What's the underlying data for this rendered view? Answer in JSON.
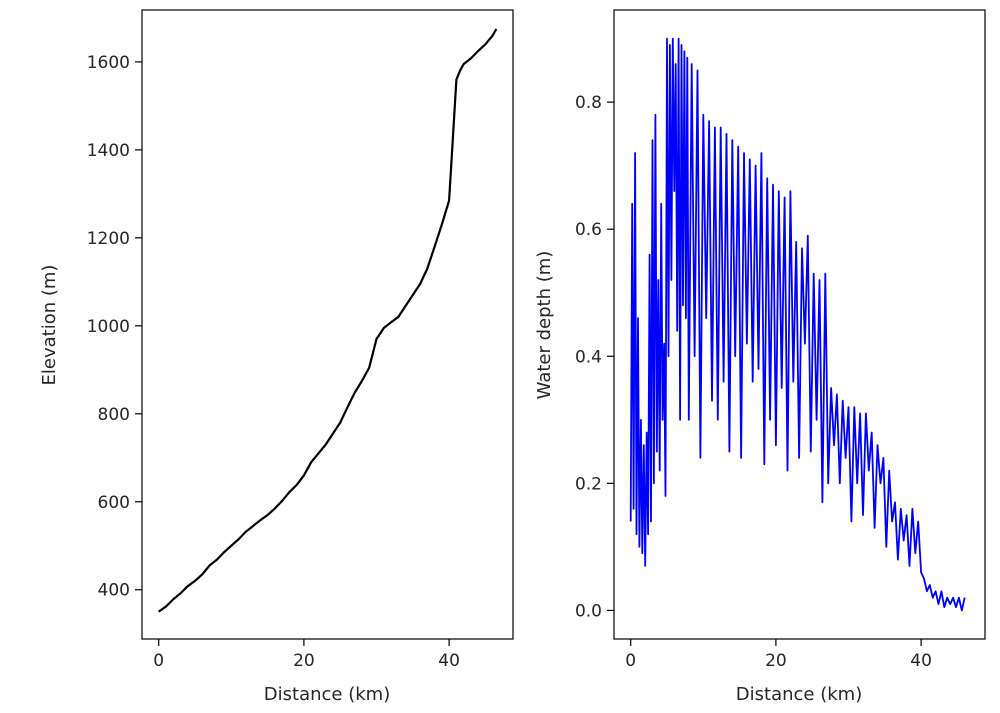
{
  "chart_data": [
    {
      "type": "line",
      "title": "",
      "xlabel": "Distance (km)",
      "ylabel": "Elevation (m)",
      "xlim": [
        -2.3,
        48.8
      ],
      "ylim": [
        288,
        1718
      ],
      "xticks": [
        0,
        20,
        40
      ],
      "yticks": [
        400,
        600,
        800,
        1000,
        1200,
        1400,
        1600
      ],
      "xtick_labels": [
        "0",
        "20",
        "40"
      ],
      "ytick_labels": [
        "400",
        "600",
        "800",
        "1000",
        "1200",
        "1400",
        "1600"
      ],
      "grid": false,
      "series": [
        {
          "name": "Elevation",
          "color": "#000000",
          "x": [
            0,
            1,
            2,
            3,
            4,
            5,
            6,
            7,
            8,
            9,
            10,
            11,
            12,
            13,
            14,
            15,
            16,
            17,
            18,
            19,
            20,
            21,
            22,
            23,
            24,
            25,
            26,
            27,
            28,
            29,
            30,
            31,
            32,
            33,
            34,
            35,
            36,
            37,
            38,
            39,
            40,
            40.5,
            41,
            41.5,
            42,
            43,
            44,
            45,
            46,
            46.5
          ],
          "values": [
            350,
            362,
            378,
            392,
            408,
            420,
            435,
            455,
            468,
            485,
            500,
            515,
            532,
            545,
            558,
            570,
            585,
            602,
            622,
            638,
            660,
            690,
            710,
            730,
            755,
            780,
            815,
            848,
            875,
            905,
            970,
            995,
            1008,
            1020,
            1045,
            1070,
            1095,
            1130,
            1180,
            1230,
            1285,
            1420,
            1560,
            1580,
            1595,
            1608,
            1625,
            1640,
            1660,
            1675
          ]
        }
      ]
    },
    {
      "type": "line",
      "title": "",
      "xlabel": "Distance (km)",
      "ylabel": "Water depth (m)",
      "xlim": [
        -2.3,
        48.8
      ],
      "ylim": [
        -0.045,
        0.945
      ],
      "xticks": [
        0,
        20,
        40
      ],
      "yticks": [
        0.0,
        0.2,
        0.4,
        0.6,
        0.8
      ],
      "xtick_labels": [
        "0",
        "20",
        "40"
      ],
      "ytick_labels": [
        "0.0",
        "0.2",
        "0.4",
        "0.6",
        "0.8"
      ],
      "grid": false,
      "series": [
        {
          "name": "Water depth",
          "color": "#0000ff",
          "x": [
            0,
            0.2,
            0.4,
            0.6,
            0.8,
            1.0,
            1.2,
            1.4,
            1.6,
            1.8,
            2.0,
            2.2,
            2.4,
            2.6,
            2.8,
            3.0,
            3.2,
            3.4,
            3.6,
            3.8,
            4.0,
            4.2,
            4.4,
            4.6,
            4.8,
            5.0,
            5.2,
            5.4,
            5.6,
            5.8,
            6.0,
            6.2,
            6.4,
            6.6,
            6.8,
            7.0,
            7.2,
            7.4,
            7.6,
            7.8,
            8.0,
            8.4,
            8.8,
            9.2,
            9.6,
            10.0,
            10.4,
            10.8,
            11.2,
            11.6,
            12.0,
            12.4,
            12.8,
            13.2,
            13.6,
            14.0,
            14.4,
            14.8,
            15.2,
            15.6,
            16.0,
            16.4,
            16.8,
            17.2,
            17.6,
            18.0,
            18.4,
            18.8,
            19.2,
            19.6,
            20.0,
            20.4,
            20.8,
            21.2,
            21.6,
            22.0,
            22.4,
            22.8,
            23.2,
            23.6,
            24.0,
            24.4,
            24.8,
            25.2,
            25.6,
            26.0,
            26.4,
            26.8,
            27.2,
            27.6,
            28.0,
            28.4,
            28.8,
            29.2,
            29.6,
            30.0,
            30.4,
            30.8,
            31.2,
            31.6,
            32.0,
            32.4,
            32.8,
            33.2,
            33.6,
            34.0,
            34.4,
            34.8,
            35.2,
            35.6,
            36.0,
            36.4,
            36.8,
            37.2,
            37.6,
            38.0,
            38.4,
            38.8,
            39.2,
            39.6,
            40.0,
            40.4,
            40.8,
            41.2,
            41.6,
            42.0,
            42.4,
            42.8,
            43.2,
            43.6,
            44.0,
            44.4,
            44.8,
            45.2,
            45.6,
            46.0
          ],
          "values": [
            0.14,
            0.64,
            0.16,
            0.72,
            0.12,
            0.46,
            0.1,
            0.3,
            0.09,
            0.26,
            0.07,
            0.28,
            0.12,
            0.56,
            0.14,
            0.74,
            0.2,
            0.78,
            0.25,
            0.52,
            0.22,
            0.64,
            0.3,
            0.42,
            0.18,
            0.9,
            0.4,
            0.89,
            0.52,
            0.9,
            0.66,
            0.86,
            0.44,
            0.9,
            0.3,
            0.89,
            0.48,
            0.88,
            0.46,
            0.87,
            0.3,
            0.86,
            0.4,
            0.85,
            0.24,
            0.78,
            0.46,
            0.77,
            0.33,
            0.76,
            0.3,
            0.76,
            0.36,
            0.75,
            0.25,
            0.74,
            0.4,
            0.73,
            0.24,
            0.72,
            0.42,
            0.71,
            0.36,
            0.7,
            0.38,
            0.72,
            0.23,
            0.68,
            0.3,
            0.67,
            0.26,
            0.66,
            0.35,
            0.65,
            0.22,
            0.66,
            0.36,
            0.58,
            0.24,
            0.57,
            0.42,
            0.59,
            0.25,
            0.53,
            0.3,
            0.52,
            0.17,
            0.53,
            0.2,
            0.35,
            0.26,
            0.34,
            0.2,
            0.33,
            0.24,
            0.32,
            0.14,
            0.32,
            0.2,
            0.31,
            0.15,
            0.31,
            0.22,
            0.28,
            0.13,
            0.26,
            0.2,
            0.24,
            0.1,
            0.22,
            0.14,
            0.17,
            0.08,
            0.16,
            0.11,
            0.15,
            0.07,
            0.16,
            0.09,
            0.14,
            0.06,
            0.05,
            0.03,
            0.04,
            0.02,
            0.03,
            0.01,
            0.03,
            0.005,
            0.02,
            0.01,
            0.02,
            0.005,
            0.02,
            0.0,
            0.02
          ]
        }
      ]
    }
  ]
}
